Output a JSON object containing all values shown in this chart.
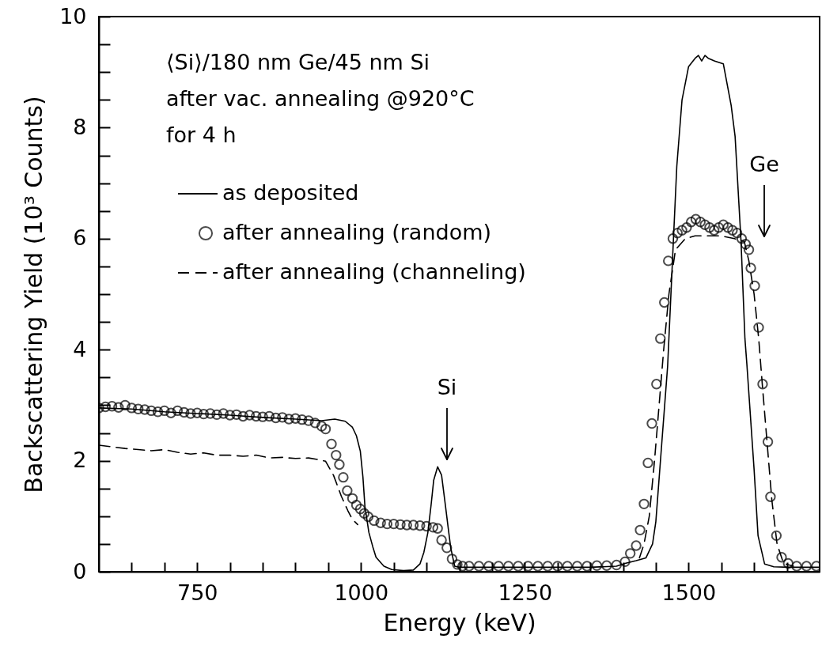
{
  "chart_data": {
    "type": "line",
    "xlabel": "Energy (keV)",
    "ylabel": "Backscattering Yield (10³ Counts)",
    "xlim": [
      600,
      1700
    ],
    "ylim": [
      0,
      10
    ],
    "xticks": [
      {
        "value": 650,
        "label": null
      },
      {
        "value": 700,
        "label": null
      },
      750,
      {
        "value": 800,
        "label": null
      },
      {
        "value": 850,
        "label": null
      },
      {
        "value": 900,
        "label": null
      },
      {
        "value": 950,
        "label": null
      },
      1000,
      {
        "value": 1050,
        "label": null
      },
      {
        "value": 1100,
        "label": null
      },
      {
        "value": 1150,
        "label": null
      },
      {
        "value": 1200,
        "label": null
      },
      1250,
      {
        "value": 1300,
        "label": null
      },
      {
        "value": 1350,
        "label": null
      },
      {
        "value": 1400,
        "label": null
      },
      {
        "value": 1450,
        "label": null
      },
      1500,
      {
        "value": 1550,
        "label": null
      },
      {
        "value": 1600,
        "label": null
      },
      {
        "value": 1650,
        "label": null
      }
    ],
    "yticks": [
      0,
      {
        "value": 0.5,
        "label": null
      },
      {
        "value": 1,
        "label": null
      },
      {
        "value": 1.5,
        "label": null
      },
      2,
      {
        "value": 2.5,
        "label": null
      },
      {
        "value": 3,
        "label": null
      },
      {
        "value": 3.5,
        "label": null
      },
      4,
      {
        "value": 4.5,
        "label": null
      },
      {
        "value": 5,
        "label": null
      },
      {
        "value": 5.5,
        "label": null
      },
      6,
      {
        "value": 6.5,
        "label": null
      },
      {
        "value": 7,
        "label": null
      },
      {
        "value": 7.5,
        "label": null
      },
      8,
      {
        "value": 8.5,
        "label": null
      },
      {
        "value": 9,
        "label": null
      },
      {
        "value": 9.5,
        "label": null
      },
      10
    ],
    "legend": "top left",
    "annotations": [
      "⟨Si⟩/180 nm Ge/45 nm Si",
      "after vac. annealing @920°C",
      "for 4 h",
      "Si",
      "Ge"
    ],
    "series": [
      {
        "name": "as deposited",
        "color": "#000000",
        "line_style": "solid",
        "marker": "none",
        "x": [
          600,
          650,
          700,
          750,
          800,
          850,
          900,
          940,
          960,
          976,
          987,
          993,
          999,
          1003,
          1006,
          1012,
          1018,
          1023,
          1035,
          1047,
          1065,
          1080,
          1090,
          1096,
          1102,
          1107,
          1111,
          1117,
          1123,
          1129,
          1133,
          1137,
          1143,
          1150,
          1250,
          1350,
          1390,
          1403,
          1420,
          1435,
          1445,
          1450,
          1459,
          1468,
          1475,
          1482,
          1490,
          1500,
          1510,
          1515,
          1520,
          1525,
          1530,
          1540,
          1553,
          1565,
          1571,
          1580,
          1586,
          1589,
          1600,
          1606,
          1616,
          1630,
          1652,
          1700
        ],
        "values": [
          2.95,
          2.93,
          2.88,
          2.85,
          2.82,
          2.78,
          2.75,
          2.72,
          2.75,
          2.71,
          2.6,
          2.45,
          2.17,
          1.7,
          1.18,
          0.71,
          0.45,
          0.26,
          0.1,
          0.04,
          0.02,
          0.03,
          0.14,
          0.35,
          0.7,
          1.2,
          1.65,
          1.89,
          1.74,
          1.18,
          0.8,
          0.43,
          0.1,
          0.08,
          0.08,
          0.08,
          0.1,
          0.15,
          0.2,
          0.25,
          0.5,
          0.9,
          2.3,
          3.7,
          5.5,
          7.3,
          8.5,
          9.1,
          9.25,
          9.3,
          9.2,
          9.3,
          9.25,
          9.2,
          9.15,
          8.4,
          7.84,
          5.96,
          4.2,
          3.73,
          1.84,
          0.65,
          0.14,
          0.09,
          0.08,
          0.08
        ]
      },
      {
        "name": "after annealing (random)",
        "type": "scatter",
        "color": "#000000",
        "marker": "circle",
        "x": [
          600,
          610,
          620,
          630,
          640,
          650,
          660,
          670,
          680,
          690,
          700,
          710,
          720,
          730,
          740,
          750,
          760,
          770,
          780,
          790,
          800,
          810,
          820,
          830,
          840,
          850,
          860,
          870,
          880,
          890,
          900,
          910,
          920,
          930,
          940,
          946,
          955,
          962,
          967,
          973,
          979,
          987,
          993,
          999,
          1005,
          1011,
          1020,
          1030,
          1040,
          1050,
          1060,
          1070,
          1080,
          1090,
          1100,
          1110,
          1117,
          1123,
          1131,
          1139,
          1147,
          1155,
          1165,
          1180,
          1195,
          1210,
          1225,
          1240,
          1255,
          1270,
          1285,
          1300,
          1315,
          1330,
          1345,
          1360,
          1375,
          1390,
          1403,
          1411,
          1420,
          1426,
          1432,
          1438,
          1444,
          1451,
          1457,
          1463,
          1469,
          1476,
          1483,
          1490,
          1497,
          1504,
          1511,
          1518,
          1525,
          1532,
          1539,
          1546,
          1553,
          1560,
          1567,
          1574,
          1581,
          1587,
          1592,
          1595,
          1601,
          1607,
          1613,
          1621,
          1625,
          1634,
          1642,
          1652,
          1665,
          1680,
          1695
        ],
        "values": [
          2.95,
          2.97,
          2.98,
          2.96,
          3.0,
          2.95,
          2.93,
          2.92,
          2.9,
          2.88,
          2.9,
          2.86,
          2.9,
          2.87,
          2.85,
          2.86,
          2.84,
          2.85,
          2.83,
          2.85,
          2.82,
          2.83,
          2.8,
          2.82,
          2.8,
          2.79,
          2.8,
          2.77,
          2.78,
          2.75,
          2.76,
          2.74,
          2.72,
          2.68,
          2.62,
          2.57,
          2.3,
          2.1,
          1.93,
          1.7,
          1.46,
          1.32,
          1.2,
          1.13,
          1.05,
          0.99,
          0.92,
          0.88,
          0.86,
          0.86,
          0.85,
          0.84,
          0.84,
          0.83,
          0.82,
          0.8,
          0.78,
          0.57,
          0.43,
          0.23,
          0.13,
          0.1,
          0.1,
          0.1,
          0.1,
          0.1,
          0.1,
          0.1,
          0.1,
          0.1,
          0.1,
          0.1,
          0.1,
          0.1,
          0.1,
          0.11,
          0.11,
          0.12,
          0.18,
          0.33,
          0.47,
          0.75,
          1.22,
          1.96,
          2.67,
          3.38,
          4.2,
          4.85,
          5.6,
          6.0,
          6.1,
          6.15,
          6.2,
          6.3,
          6.35,
          6.3,
          6.25,
          6.2,
          6.15,
          6.2,
          6.25,
          6.2,
          6.15,
          6.1,
          6.0,
          5.9,
          5.8,
          5.47,
          5.15,
          4.4,
          3.38,
          2.34,
          1.35,
          0.65,
          0.26,
          0.15,
          0.1,
          0.1,
          0.1
        ]
      },
      {
        "name": "after annealing (channeling)",
        "color": "#000000",
        "line_style": "dashed",
        "marker": "none",
        "x": [
          600,
          620,
          640,
          660,
          680,
          700,
          720,
          740,
          760,
          780,
          800,
          820,
          840,
          860,
          880,
          900,
          920,
          935,
          946,
          958,
          970,
          980,
          987,
          995,
          1200,
          1425,
          1432,
          1440,
          1448,
          1455,
          1462,
          1470,
          1480,
          1495,
          1510,
          1530,
          1550,
          1570,
          1585,
          1592,
          1600,
          1607,
          1613,
          1620,
          1627,
          1635,
          1645,
          1660
        ],
        "values": [
          2.28,
          2.25,
          2.22,
          2.2,
          2.18,
          2.2,
          2.15,
          2.12,
          2.14,
          2.1,
          2.1,
          2.08,
          2.1,
          2.05,
          2.06,
          2.04,
          2.05,
          2.02,
          1.99,
          1.74,
          1.36,
          1.1,
          0.94,
          0.85,
          null,
          0.25,
          0.5,
          1.0,
          2.0,
          3.0,
          4.0,
          5.0,
          5.8,
          6.0,
          6.05,
          6.05,
          6.05,
          6.0,
          5.95,
          5.6,
          5.0,
          4.2,
          3.3,
          2.3,
          1.3,
          0.5,
          0.15,
          0.1
        ]
      }
    ]
  }
}
